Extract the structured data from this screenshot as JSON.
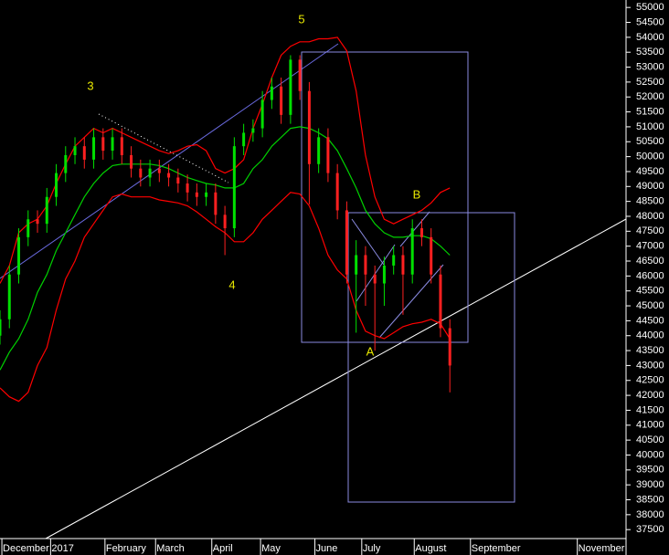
{
  "chart_data": {
    "type": "candlestick",
    "x": [
      0,
      5,
      10,
      15,
      20,
      25,
      30,
      35,
      40,
      45,
      50,
      55,
      60,
      65,
      70,
      75,
      80,
      85,
      90,
      95,
      100,
      105,
      110,
      115,
      120,
      125,
      130,
      135,
      140,
      145,
      150,
      155,
      160,
      165,
      170,
      175,
      180,
      185,
      190,
      195,
      200,
      205,
      210,
      215,
      220,
      225,
      230,
      235,
      240
    ],
    "open": [
      44000,
      44550,
      46050,
      47300,
      47900,
      47750,
      48650,
      49450,
      50050,
      50350,
      49900,
      50650,
      50200,
      50650,
      50050,
      49600,
      49300,
      49600,
      49450,
      49300,
      49100,
      48800,
      48650,
      48800,
      48050,
      47600,
      50350,
      50800,
      50950,
      51900,
      52350,
      51400,
      53250,
      52200,
      49750,
      50650,
      49450,
      48200,
      46050,
      46700,
      46050,
      45750,
      46350,
      46700,
      46050,
      47600,
      47300,
      46050,
      44250
    ],
    "high": [
      44850,
      46350,
      47600,
      48200,
      48200,
      48950,
      49750,
      50350,
      50650,
      50650,
      50950,
      50950,
      50950,
      50950,
      50350,
      49900,
      49900,
      49900,
      49750,
      49600,
      49400,
      49100,
      49100,
      49100,
      48350,
      50650,
      51100,
      51250,
      52200,
      52650,
      52650,
      53400,
      53400,
      52500,
      50950,
      50950,
      49750,
      48500,
      47200,
      47000,
      46350,
      46650,
      47000,
      47000,
      47900,
      47900,
      47600,
      46350,
      44550
    ],
    "low": [
      43700,
      44250,
      45750,
      47000,
      47450,
      47450,
      48350,
      49150,
      49750,
      49600,
      49600,
      49900,
      49900,
      49750,
      49300,
      49000,
      49000,
      49150,
      49000,
      48800,
      48500,
      48350,
      48350,
      47750,
      46700,
      47300,
      50050,
      50500,
      50650,
      51600,
      51100,
      51100,
      51900,
      48400,
      49450,
      49150,
      47900,
      45750,
      44100,
      45000,
      43500,
      45000,
      46050,
      44700,
      45750,
      47000,
      45750,
      43950,
      42100
    ],
    "close": [
      44550,
      46050,
      47300,
      47900,
      47750,
      48650,
      49450,
      50050,
      50350,
      49900,
      50650,
      50200,
      50650,
      50050,
      49600,
      49300,
      49600,
      49450,
      49300,
      49100,
      48800,
      48650,
      48800,
      48050,
      47600,
      50350,
      50800,
      50950,
      51900,
      52350,
      51400,
      53250,
      52200,
      49750,
      50650,
      49450,
      48200,
      46050,
      46700,
      46050,
      45750,
      46350,
      46700,
      46050,
      47600,
      47300,
      46050,
      44250,
      43000
    ],
    "up_color": "#00e000",
    "down_color": "#ff2020",
    "bands": [
      {
        "color": "#ff0000",
        "values": [
          45750,
          46350,
          47450,
          47750,
          47900,
          48350,
          49100,
          49750,
          50350,
          50650,
          50950,
          50800,
          50950,
          50800,
          50650,
          50500,
          50350,
          50200,
          50100,
          50200,
          50350,
          50400,
          50200,
          49600,
          49450,
          49600,
          49900,
          50950,
          51750,
          52650,
          53400,
          53700,
          53850,
          53850,
          53950,
          53950,
          54000,
          53550,
          52200,
          50050,
          48650,
          47900,
          47750,
          47900,
          48050,
          48200,
          48450,
          48800,
          48950
        ]
      },
      {
        "color": "#ff0000",
        "values": [
          42250,
          41950,
          41800,
          42100,
          43000,
          43600,
          44850,
          45900,
          46500,
          47300,
          47750,
          48200,
          48650,
          48750,
          48650,
          48650,
          48650,
          48550,
          48500,
          48450,
          48350,
          48150,
          47900,
          47650,
          47450,
          47150,
          47150,
          47450,
          47900,
          48200,
          48500,
          48800,
          48750,
          48350,
          47600,
          46700,
          46200,
          45900,
          44850,
          44150,
          44000,
          43900,
          44100,
          44300,
          44400,
          44450,
          44550,
          44400,
          43900
        ]
      },
      {
        "color": "#00d000",
        "values": [
          42850,
          43450,
          43900,
          44550,
          45450,
          46050,
          46850,
          47450,
          48050,
          48650,
          49100,
          49450,
          49700,
          49750,
          49750,
          49750,
          49750,
          49700,
          49600,
          49450,
          49300,
          49200,
          49100,
          49050,
          48950,
          48950,
          49100,
          49600,
          49900,
          50350,
          50650,
          50950,
          51000,
          50950,
          50800,
          50600,
          50200,
          49600,
          48950,
          48200,
          47750,
          47450,
          47300,
          47300,
          47350,
          47350,
          47250,
          47000,
          46700
        ]
      }
    ],
    "xlim": [
      0,
      334
    ],
    "xticks": [
      {
        "value": 1,
        "label": "December"
      },
      {
        "value": 27,
        "label": "2017"
      },
      {
        "value": 56,
        "label": "February"
      },
      {
        "value": 83,
        "label": "March"
      },
      {
        "value": 113,
        "label": "April"
      },
      {
        "value": 139,
        "label": "May"
      },
      {
        "value": 168,
        "label": "June"
      },
      {
        "value": 193,
        "label": "July"
      },
      {
        "value": 221,
        "label": "August"
      },
      {
        "value": 251,
        "label": "September"
      },
      {
        "value": 308,
        "label": "November"
      }
    ],
    "ylim": [
      37200,
      55250
    ],
    "yticks": [
      37500,
      38000,
      38500,
      39000,
      39500,
      40000,
      40500,
      41000,
      41500,
      42000,
      42500,
      43000,
      43500,
      44000,
      44500,
      45000,
      45500,
      46000,
      46500,
      47000,
      47500,
      48000,
      48500,
      49000,
      49500,
      50000,
      50500,
      51000,
      51500,
      52000,
      52500,
      53000,
      53500,
      54000,
      54500,
      55000
    ],
    "annotations": [
      "3",
      "4",
      "5",
      "A",
      "B"
    ],
    "annotation_color": "#e8e800"
  }
}
